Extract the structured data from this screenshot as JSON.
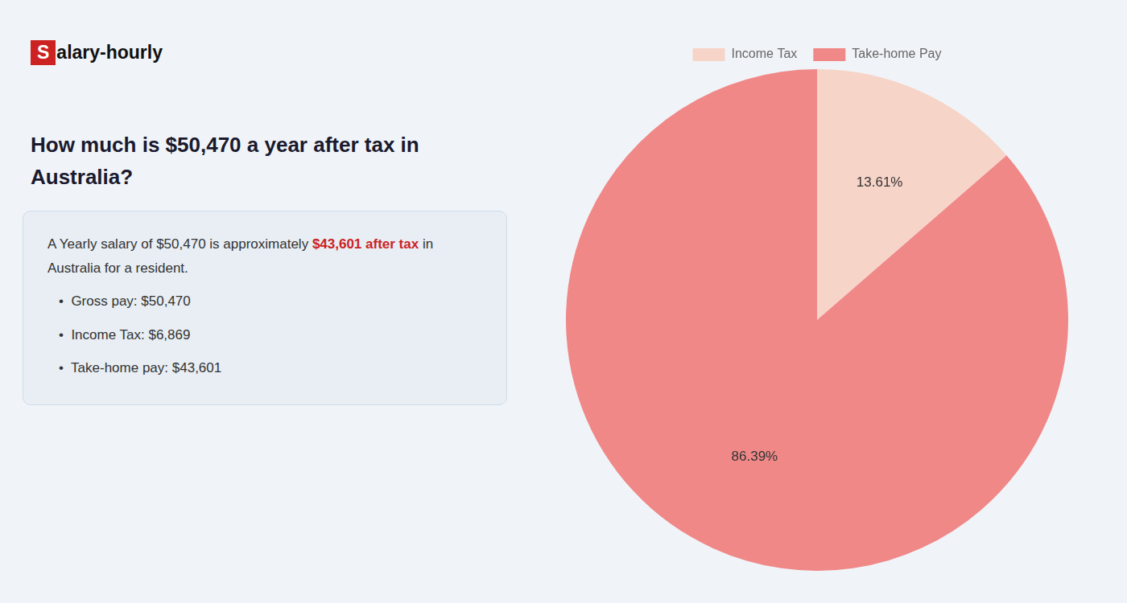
{
  "chart_data": {
    "type": "pie",
    "title": [
      "How much is $50,470 a year after tax in",
      "Australia?"
    ],
    "annotations": [
      [
        {
          "text": "S",
          "color": "#cc2222"
        },
        {
          "text": "alary-hourly"
        }
      ],
      [
        {
          "text": "A Yearly salary of $50,470 is approximately "
        },
        {
          "text": "$43,601 after tax",
          "color": "#cc2222"
        },
        {
          "text": " in"
        }
      ],
      [
        {
          "text": "Australia for a resident."
        }
      ],
      [
        {
          "text": "•  Gross pay: $50,470"
        }
      ],
      [
        {
          "text": "•  Income Tax: $6,869"
        }
      ],
      [
        {
          "text": "•  Take-home pay: $43,601"
        }
      ]
    ],
    "categories": [
      "Income Tax",
      "Take-home Pay"
    ],
    "values": [
      13.61,
      86.39
    ],
    "value_labels": [
      "13.61%",
      "86.39%"
    ],
    "colors": [
      "#f7d4c8",
      "#f08888"
    ],
    "data_labels": true,
    "legend": "top"
  }
}
